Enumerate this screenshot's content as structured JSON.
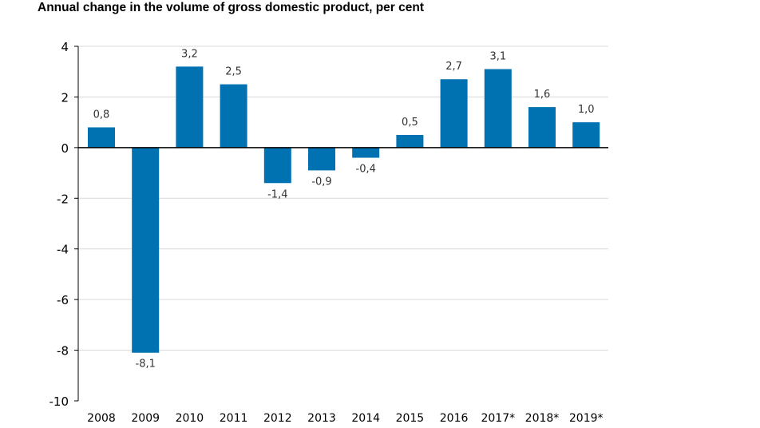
{
  "chart_data": {
    "type": "bar",
    "title": "Annual change in the volume of gross domestic product, per cent",
    "categories": [
      "2008",
      "2009",
      "2010",
      "2011",
      "2012",
      "2013",
      "2014",
      "2015",
      "2016",
      "2017*",
      "2018*",
      "2019*"
    ],
    "values": [
      0.8,
      -8.1,
      3.2,
      2.5,
      -1.4,
      -0.9,
      -0.4,
      0.5,
      2.7,
      3.1,
      1.6,
      1.0
    ],
    "data_labels": [
      "0,8",
      "-8,1",
      "3,2",
      "2,5",
      "-1,4",
      "-0,9",
      "-0,4",
      "0,5",
      "2,7",
      "3,1",
      "1,6",
      "1,0"
    ],
    "ylim": [
      -10,
      4
    ],
    "yticks": [
      4,
      2,
      0,
      -2,
      -4,
      -6,
      -8,
      -10
    ],
    "grid": true,
    "bar_color": "#0072B2"
  }
}
